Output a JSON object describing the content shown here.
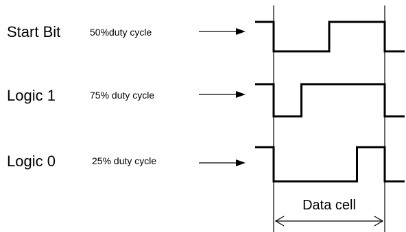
{
  "rows": [
    {
      "label": "Start Bit",
      "duty_text": "50%duty cycle",
      "duty_cycle": 0.5
    },
    {
      "label": "Logic 1",
      "duty_text": "75% duty cycle",
      "duty_cycle": 0.75
    },
    {
      "label": "Logic 0",
      "duty_text": "25% duty cycle",
      "duty_cycle": 0.25
    }
  ],
  "data_cell_label": "Data cell",
  "colors": {
    "line": "#000000",
    "background": "#ffffff"
  }
}
